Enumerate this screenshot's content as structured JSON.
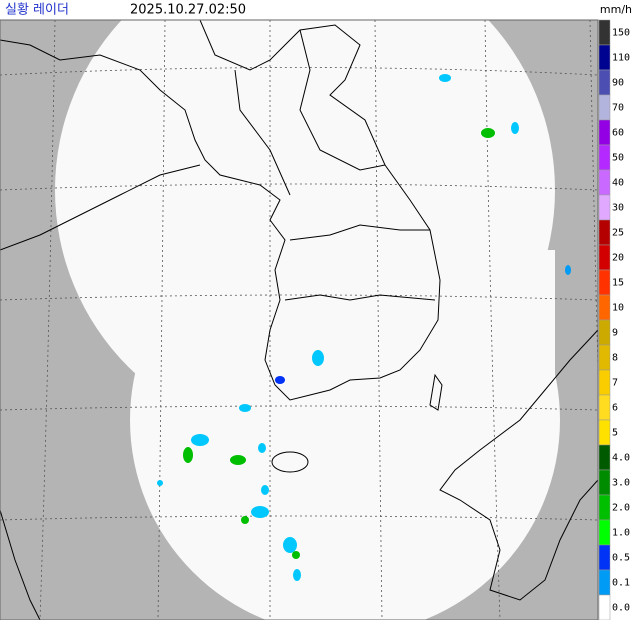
{
  "header": {
    "title": "실황 레이더",
    "time": "2025.10.27.02:50",
    "unit": "mm/h"
  },
  "legend": [
    {
      "label": "150",
      "color": "#333333"
    },
    {
      "label": "110",
      "color": "#000390"
    },
    {
      "label": "90",
      "color": "#4c4eb1"
    },
    {
      "label": "70",
      "color": "#b3b4de"
    },
    {
      "label": "60",
      "color": "#9300e4"
    },
    {
      "label": "50",
      "color": "#b329ff"
    },
    {
      "label": "40",
      "color": "#c969ff"
    },
    {
      "label": "30",
      "color": "#e0a9ff"
    },
    {
      "label": "25",
      "color": "#b40000"
    },
    {
      "label": "20",
      "color": "#d20000"
    },
    {
      "label": "15",
      "color": "#ff3200"
    },
    {
      "label": "10",
      "color": "#ff6600"
    },
    {
      "label": "9",
      "color": "#ccaa00"
    },
    {
      "label": "8",
      "color": "#e0b900"
    },
    {
      "label": "7",
      "color": "#f9cd00"
    },
    {
      "label": "6",
      "color": "#ffdc1f"
    },
    {
      "label": "5",
      "color": "#ffe100"
    },
    {
      "label": "4.0",
      "color": "#005a00"
    },
    {
      "label": "3.0",
      "color": "#008c00"
    },
    {
      "label": "2.0",
      "color": "#00be00"
    },
    {
      "label": "1.0",
      "color": "#00ff00"
    },
    {
      "label": "0.5",
      "color": "#0033f5"
    },
    {
      "label": "0.1",
      "color": "#009bf5"
    },
    {
      "label": "0.0",
      "color": "#ffffff"
    }
  ]
}
